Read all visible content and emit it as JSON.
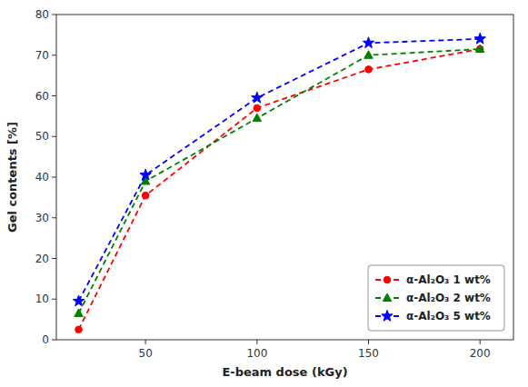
{
  "chart_data": {
    "type": "line",
    "x": [
      20,
      50,
      100,
      150,
      200
    ],
    "series": [
      {
        "name": "α-Al₂O₃ 1 wt%",
        "color": "red",
        "marker": "circle",
        "values": [
          2.5,
          35.5,
          57.0,
          66.5,
          71.5
        ]
      },
      {
        "name": "α-Al₂O₃ 2 wt%",
        "color": "green",
        "marker": "triangle",
        "values": [
          6.5,
          39.0,
          54.5,
          70.0,
          71.5
        ]
      },
      {
        "name": "α-Al₂O₃ 5 wt%",
        "color": "blue",
        "marker": "star",
        "values": [
          9.5,
          40.5,
          59.5,
          73.0,
          74.0
        ]
      }
    ],
    "xlabel": "E-beam dose (kGy)",
    "ylabel": "Gel contents [%]",
    "xlim": [
      10,
      215
    ],
    "ylim": [
      0,
      80
    ],
    "xticks": [
      50,
      100,
      150,
      200
    ],
    "yticks": [
      0,
      10,
      20,
      30,
      40,
      50,
      60,
      70,
      80
    ],
    "grid": false,
    "legend": "lower right",
    "line_style": "dashed"
  }
}
